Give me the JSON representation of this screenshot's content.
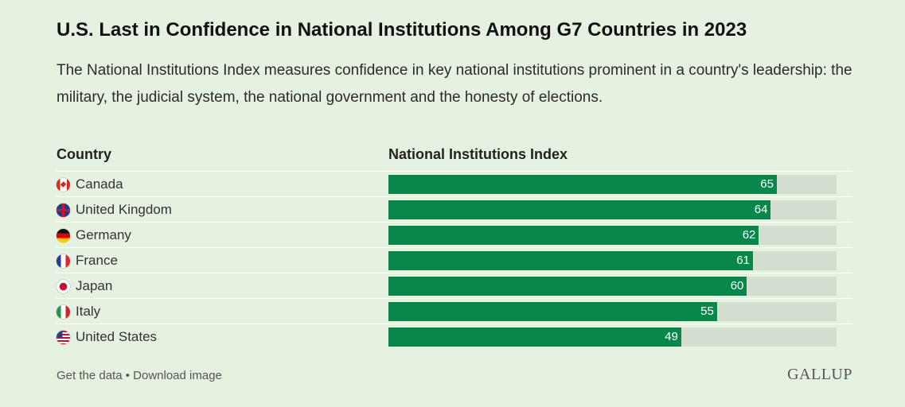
{
  "header": {
    "title": "U.S. Last in Confidence in National Institutions Among G7 Countries in 2023",
    "subtitle": "The National Institutions Index measures confidence in key national institutions prominent in a country's leadership: the military, the judicial system, the national government and the honesty of elections."
  },
  "columns": {
    "country": "Country",
    "index": "National Institutions Index"
  },
  "colors": {
    "bar": "#08874b",
    "track": "#d3ddd0",
    "background": "#e5f1e1"
  },
  "chart_data": {
    "type": "bar",
    "orientation": "horizontal",
    "title": "U.S. Last in Confidence in National Institutions Among G7 Countries in 2023",
    "categories": [
      "Canada",
      "United Kingdom",
      "Germany",
      "France",
      "Japan",
      "Italy",
      "United States"
    ],
    "flags": [
      "canada-flag-icon",
      "uk-flag-icon",
      "germany-flag-icon",
      "france-flag-icon",
      "japan-flag-icon",
      "italy-flag-icon",
      "us-flag-icon"
    ],
    "values": [
      65,
      64,
      62,
      61,
      60,
      55,
      49
    ],
    "xlim": [
      0,
      75
    ],
    "grid": false
  },
  "footer": {
    "get_data": "Get the data",
    "separator": " • ",
    "download": "Download image",
    "logo": "GALLUP"
  }
}
